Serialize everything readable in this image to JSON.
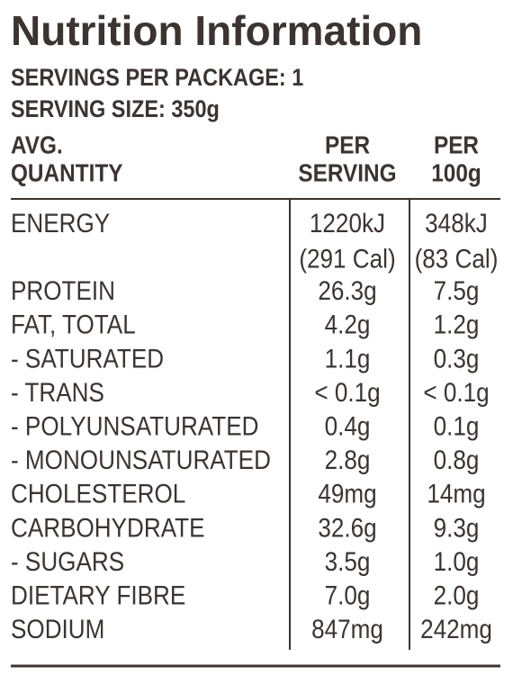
{
  "title": "Nutrition Information",
  "servings_per_package": "SERVINGS PER PACKAGE: 1",
  "serving_size": "SERVING SIZE: 350g",
  "table": {
    "header": [
      [
        "AVG.",
        "QUANTITY"
      ],
      [
        "PER",
        "SERVING"
      ],
      [
        "PER",
        "100g"
      ]
    ],
    "rows": [
      [
        [
          "ENERGY"
        ],
        [
          "1220kJ",
          "(291 Cal)"
        ],
        [
          "348kJ",
          "(83 Cal)"
        ]
      ],
      [
        [
          "PROTEIN"
        ],
        [
          "26.3g"
        ],
        [
          "7.5g"
        ]
      ],
      [
        [
          "FAT, TOTAL"
        ],
        [
          "4.2g"
        ],
        [
          "1.2g"
        ]
      ],
      [
        [
          "- SATURATED"
        ],
        [
          "1.1g"
        ],
        [
          "0.3g"
        ]
      ],
      [
        [
          "- TRANS"
        ],
        [
          "< 0.1g"
        ],
        [
          "< 0.1g"
        ]
      ],
      [
        [
          "- POLYUNSATURATED"
        ],
        [
          "0.4g"
        ],
        [
          "0.1g"
        ]
      ],
      [
        [
          "- MONOUNSATURATED"
        ],
        [
          "2.8g"
        ],
        [
          "0.8g"
        ]
      ],
      [
        [
          "CHOLESTEROL"
        ],
        [
          "49mg"
        ],
        [
          "14mg"
        ]
      ],
      [
        [
          "CARBOHYDRATE"
        ],
        [
          "32.6g"
        ],
        [
          "9.3g"
        ]
      ],
      [
        [
          "- SUGARS"
        ],
        [
          "3.5g"
        ],
        [
          "1.0g"
        ]
      ],
      [
        [
          "DIETARY FIBRE"
        ],
        [
          "7.0g"
        ],
        [
          "2.0g"
        ]
      ],
      [
        [
          "SODIUM"
        ],
        [
          "847mg"
        ],
        [
          "242mg"
        ]
      ]
    ]
  }
}
